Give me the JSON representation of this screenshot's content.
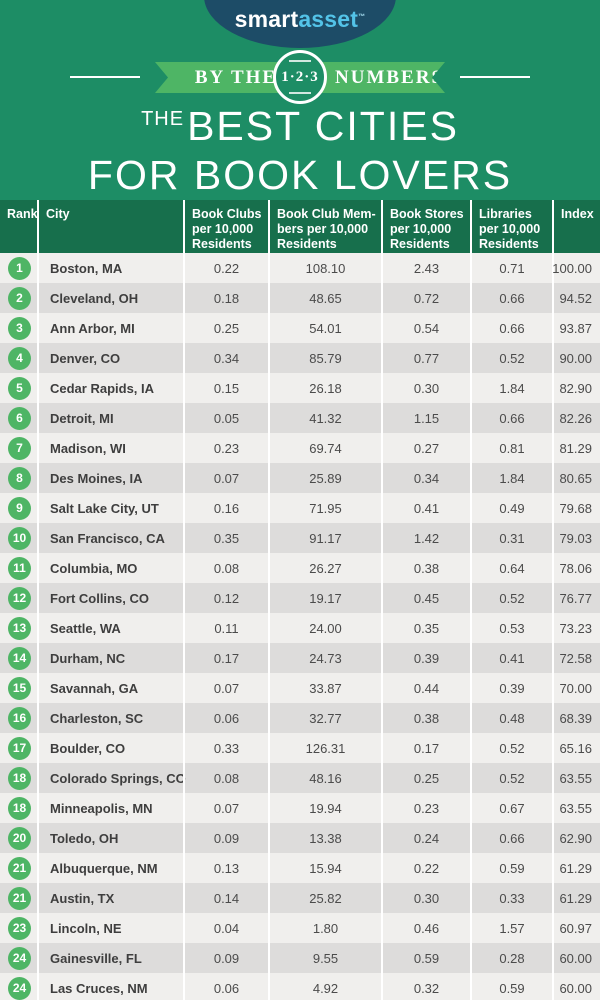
{
  "logo": {
    "smart": "smart",
    "asset": "asset",
    "tm": "™"
  },
  "banner": {
    "left": "BY THE",
    "circle": "1·2·3",
    "right": "NUMBERS"
  },
  "title": {
    "the": "THE",
    "line1": "BEST CITIES",
    "line2": "FOR BOOK LOVERS"
  },
  "colors": {
    "background_green": "#1d8d65",
    "ribbon_green": "#4eb565",
    "header_green": "#176f4c",
    "logo_navy": "#1d4c67",
    "logo_blue": "#53c3e8",
    "rank_badge_green": "#4eb565",
    "row_light": "#f0efed",
    "row_dark": "#dddcdb"
  },
  "chart_data": {
    "type": "table",
    "title": "The Best Cities for Book Lovers",
    "columns": [
      "Rank",
      "City",
      "Book Clubs\nper 10,000\nResidents",
      "Book Club Mem-\nbers per 10,000\nResidents",
      "Book Stores\nper 10,000\nResidents",
      "Libraries\nper 10,000\nResidents",
      "Index"
    ],
    "rows": [
      {
        "rank": "1",
        "city": "Boston, MA",
        "clubs": "0.22",
        "members": "108.10",
        "stores": "2.43",
        "libraries": "0.71",
        "index": "100.00"
      },
      {
        "rank": "2",
        "city": "Cleveland, OH",
        "clubs": "0.18",
        "members": "48.65",
        "stores": "0.72",
        "libraries": "0.66",
        "index": "94.52"
      },
      {
        "rank": "3",
        "city": "Ann Arbor, MI",
        "clubs": "0.25",
        "members": "54.01",
        "stores": "0.54",
        "libraries": "0.66",
        "index": "93.87"
      },
      {
        "rank": "4",
        "city": "Denver, CO",
        "clubs": "0.34",
        "members": "85.79",
        "stores": "0.77",
        "libraries": "0.52",
        "index": "90.00"
      },
      {
        "rank": "5",
        "city": "Cedar Rapids, IA",
        "clubs": "0.15",
        "members": "26.18",
        "stores": "0.30",
        "libraries": "1.84",
        "index": "82.90"
      },
      {
        "rank": "6",
        "city": "Detroit, MI",
        "clubs": "0.05",
        "members": "41.32",
        "stores": "1.15",
        "libraries": "0.66",
        "index": "82.26"
      },
      {
        "rank": "7",
        "city": "Madison, WI",
        "clubs": "0.23",
        "members": "69.74",
        "stores": "0.27",
        "libraries": "0.81",
        "index": "81.29"
      },
      {
        "rank": "8",
        "city": "Des Moines, IA",
        "clubs": "0.07",
        "members": "25.89",
        "stores": "0.34",
        "libraries": "1.84",
        "index": "80.65"
      },
      {
        "rank": "9",
        "city": "Salt Lake City, UT",
        "clubs": "0.16",
        "members": "71.95",
        "stores": "0.41",
        "libraries": "0.49",
        "index": "79.68"
      },
      {
        "rank": "10",
        "city": "San Francisco, CA",
        "clubs": "0.35",
        "members": "91.17",
        "stores": "1.42",
        "libraries": "0.31",
        "index": "79.03"
      },
      {
        "rank": "11",
        "city": "Columbia, MO",
        "clubs": "0.08",
        "members": "26.27",
        "stores": "0.38",
        "libraries": "0.64",
        "index": "78.06"
      },
      {
        "rank": "12",
        "city": "Fort Collins, CO",
        "clubs": "0.12",
        "members": "19.17",
        "stores": "0.45",
        "libraries": "0.52",
        "index": "76.77"
      },
      {
        "rank": "13",
        "city": "Seattle, WA",
        "clubs": "0.11",
        "members": "24.00",
        "stores": "0.35",
        "libraries": "0.53",
        "index": "73.23"
      },
      {
        "rank": "14",
        "city": "Durham, NC",
        "clubs": "0.17",
        "members": "24.73",
        "stores": "0.39",
        "libraries": "0.41",
        "index": "72.58"
      },
      {
        "rank": "15",
        "city": "Savannah, GA",
        "clubs": "0.07",
        "members": "33.87",
        "stores": "0.44",
        "libraries": "0.39",
        "index": "70.00"
      },
      {
        "rank": "16",
        "city": "Charleston, SC",
        "clubs": "0.06",
        "members": "32.77",
        "stores": "0.38",
        "libraries": "0.48",
        "index": "68.39"
      },
      {
        "rank": "17",
        "city": "Boulder, CO",
        "clubs": "0.33",
        "members": "126.31",
        "stores": "0.17",
        "libraries": "0.52",
        "index": "65.16"
      },
      {
        "rank": "18",
        "city": "Colorado Springs, CO",
        "clubs": "0.08",
        "members": "48.16",
        "stores": "0.25",
        "libraries": "0.52",
        "index": "63.55"
      },
      {
        "rank": "18",
        "city": "Minneapolis, MN",
        "clubs": "0.07",
        "members": "19.94",
        "stores": "0.23",
        "libraries": "0.67",
        "index": "63.55"
      },
      {
        "rank": "20",
        "city": "Toledo, OH",
        "clubs": "0.09",
        "members": "13.38",
        "stores": "0.24",
        "libraries": "0.66",
        "index": "62.90"
      },
      {
        "rank": "21",
        "city": "Albuquerque, NM",
        "clubs": "0.13",
        "members": "15.94",
        "stores": "0.22",
        "libraries": "0.59",
        "index": "61.29"
      },
      {
        "rank": "21",
        "city": "Austin, TX",
        "clubs": "0.14",
        "members": "25.82",
        "stores": "0.30",
        "libraries": "0.33",
        "index": "61.29"
      },
      {
        "rank": "23",
        "city": "Lincoln, NE",
        "clubs": "0.04",
        "members": "1.80",
        "stores": "0.46",
        "libraries": "1.57",
        "index": "60.97"
      },
      {
        "rank": "24",
        "city": "Gainesville, FL",
        "clubs": "0.09",
        "members": "9.55",
        "stores": "0.59",
        "libraries": "0.28",
        "index": "60.00"
      },
      {
        "rank": "24",
        "city": "Las Cruces, NM",
        "clubs": "0.06",
        "members": "4.92",
        "stores": "0.32",
        "libraries": "0.59",
        "index": "60.00"
      }
    ]
  }
}
